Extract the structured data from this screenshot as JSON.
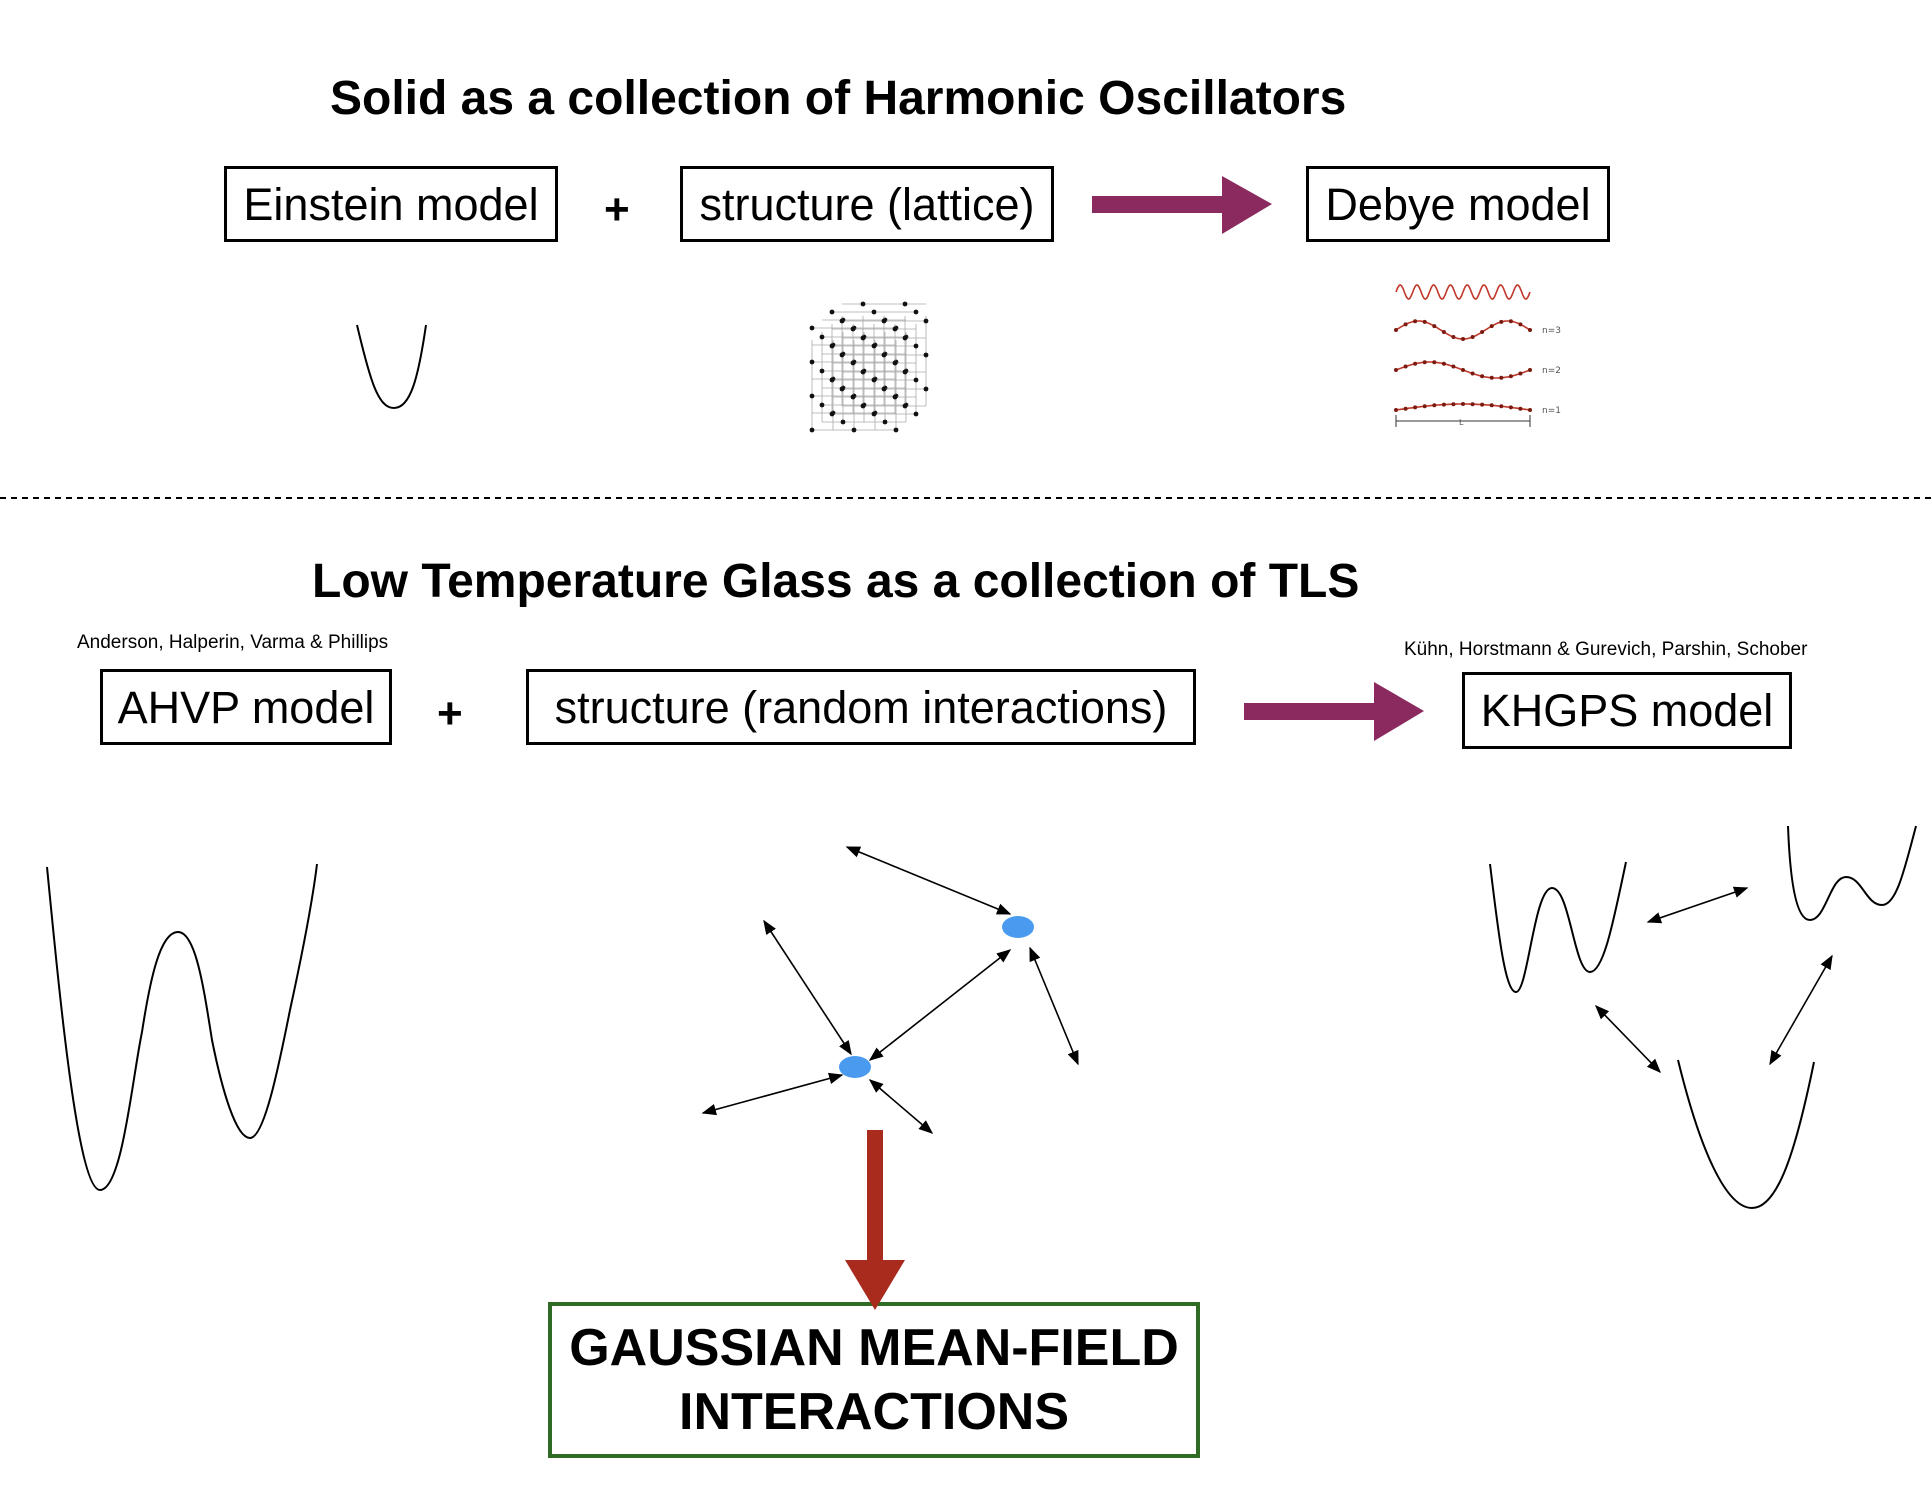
{
  "top_section": {
    "title": "Solid as a collection of Harmonic Oscillators",
    "box_einstein": "Einstein model",
    "plus": "+",
    "box_structure": "structure (lattice)",
    "box_debye": "Debye model",
    "debye_labels": [
      "n=3",
      "n=2",
      "n=1",
      "L"
    ]
  },
  "bottom_section": {
    "title": "Low Temperature Glass as a collection of TLS",
    "citation_left": "Anderson, Halperin, Varma & Phillips",
    "citation_right": "Kühn, Horstmann & Gurevich, Parshin, Schober",
    "box_ahvp": "AHVP model",
    "plus": "+",
    "box_structure": "structure (random interactions)",
    "box_khgps": "KHGPS model",
    "result_line1": "GAUSSIAN MEAN-FIELD",
    "result_line2": "INTERACTIONS"
  },
  "colors": {
    "arrow_purple": "#8b2a5e",
    "arrow_red": "#a92b1e",
    "node_blue": "#4a9bef",
    "result_border": "#2f6b24",
    "wave_red": "#c0392b"
  }
}
